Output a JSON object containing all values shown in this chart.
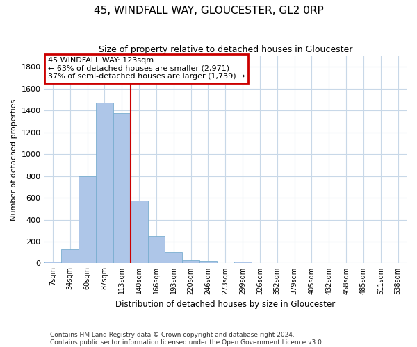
{
  "title": "45, WINDFALL WAY, GLOUCESTER, GL2 0RP",
  "subtitle": "Size of property relative to detached houses in Gloucester",
  "xlabel": "Distribution of detached houses by size in Gloucester",
  "ylabel": "Number of detached properties",
  "bin_labels": [
    "7sqm",
    "34sqm",
    "60sqm",
    "87sqm",
    "113sqm",
    "140sqm",
    "166sqm",
    "193sqm",
    "220sqm",
    "246sqm",
    "273sqm",
    "299sqm",
    "326sqm",
    "352sqm",
    "379sqm",
    "405sqm",
    "432sqm",
    "458sqm",
    "485sqm",
    "511sqm",
    "538sqm"
  ],
  "bar_values": [
    15,
    130,
    795,
    1470,
    1375,
    575,
    250,
    105,
    30,
    20,
    0,
    15,
    0,
    0,
    0,
    0,
    0,
    0,
    0,
    0,
    0
  ],
  "bar_color": "#aec6e8",
  "bar_edgecolor": "#7aaed0",
  "property_line_bin_index": 4.5,
  "annotation_title": "45 WINDFALL WAY: 123sqm",
  "annotation_line1": "← 63% of detached houses are smaller (2,971)",
  "annotation_line2": "37% of semi-detached houses are larger (1,739) →",
  "annotation_box_color": "#cc0000",
  "ylim": [
    0,
    1900
  ],
  "yticks": [
    0,
    200,
    400,
    600,
    800,
    1000,
    1200,
    1400,
    1600,
    1800
  ],
  "footnote1": "Contains HM Land Registry data © Crown copyright and database right 2024.",
  "footnote2": "Contains public sector information licensed under the Open Government Licence v3.0.",
  "background_color": "#ffffff",
  "grid_color": "#c8d8e8"
}
